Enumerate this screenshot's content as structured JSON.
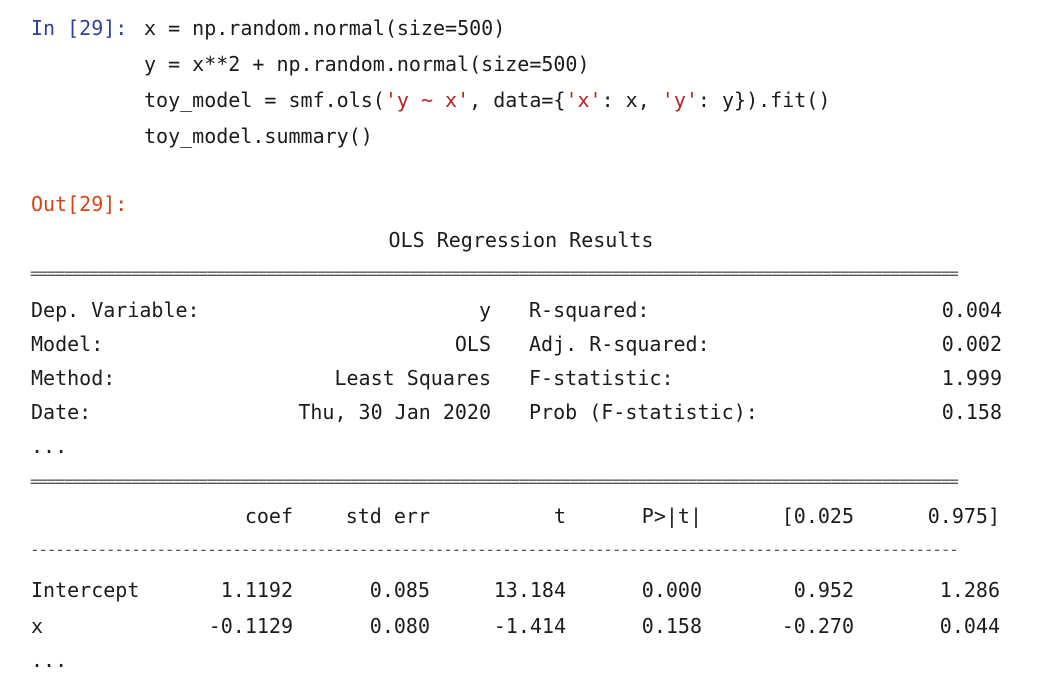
{
  "cell": {
    "in_prompt": "In [29]:",
    "code": {
      "line1": "x = np.random.normal(size=500)",
      "line2": "y = x**2 + np.random.normal(size=500)",
      "line3_pre": "toy_model = smf.ols(",
      "line3_str1": "'y ~ x'",
      "line3_mid1": ", data={",
      "line3_str2": "'x'",
      "line3_mid2": ": x, ",
      "line3_str3": "'y'",
      "line3_post": ": y}).fit()",
      "line4": "toy_model.summary()"
    },
    "out_prompt": "Out[29]:"
  },
  "summary": {
    "title": "OLS Regression Results",
    "double_rule": "==============================================================================================================",
    "single_rule": "--------------------------------------------------------------------------------------------------------------",
    "model_info": [
      {
        "label": "Dep. Variable:",
        "value": "y",
        "stat_label": "R-squared:",
        "stat_value": "0.004"
      },
      {
        "label": "Model:",
        "value": "OLS",
        "stat_label": "Adj. R-squared:",
        "stat_value": "0.002"
      },
      {
        "label": "Method:",
        "value": "Least Squares",
        "stat_label": "F-statistic:",
        "stat_value": "1.999"
      },
      {
        "label": "Date:",
        "value": "Thu, 30 Jan 2020",
        "stat_label": "Prob (F-statistic):",
        "stat_value": "0.158"
      }
    ],
    "ellipsis1": "...",
    "coef_headers": [
      "coef",
      "std err",
      "t",
      "P>|t|",
      "[0.025",
      "0.975]"
    ],
    "coef_rows": [
      {
        "name": "Intercept",
        "values": [
          "1.1192",
          "0.085",
          "13.184",
          "0.000",
          "0.952",
          "1.286"
        ]
      },
      {
        "name": "x",
        "values": [
          "-0.1129",
          "0.080",
          "-1.414",
          "0.158",
          "-0.270",
          "0.044"
        ]
      }
    ],
    "ellipsis2": "..."
  }
}
